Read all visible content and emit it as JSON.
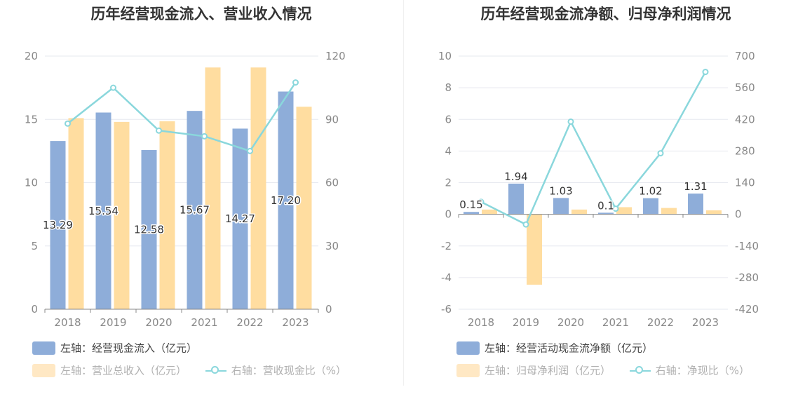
{
  "chart_data": [
    {
      "type": "bar",
      "title": "历年经营现金流入、营业收入情况",
      "categories": [
        "2018",
        "2019",
        "2020",
        "2021",
        "2022",
        "2023"
      ],
      "y_left": {
        "ticks": [
          "0",
          "5",
          "10",
          "15",
          "20"
        ],
        "range": [
          0,
          20
        ]
      },
      "y_right": {
        "ticks": [
          "0",
          "30",
          "60",
          "90",
          "120"
        ],
        "range": [
          0,
          120
        ]
      },
      "series": [
        {
          "name": "左轴：经营现金流入（亿元）",
          "axis": "left",
          "kind": "bar",
          "color": "#8eadd9",
          "values": [
            13.29,
            15.54,
            12.58,
            15.67,
            14.27,
            17.2
          ],
          "labels": [
            "13.29",
            "15.54",
            "12.58",
            "15.67",
            "14.27",
            "17.20"
          ]
        },
        {
          "name": "左轴：营业总收入（亿元）",
          "axis": "left",
          "kind": "bar",
          "color": "#ffdda0",
          "values": [
            15.1,
            14.8,
            14.85,
            19.1,
            19.1,
            16.0
          ]
        },
        {
          "name": "右轴：营收现金比（%）",
          "axis": "right",
          "kind": "line",
          "color": "#8ad7dc",
          "values": [
            88.0,
            105.0,
            84.7,
            82.0,
            75.0,
            107.5
          ]
        }
      ],
      "grid": true
    },
    {
      "type": "bar",
      "title": "历年经营现金流净额、归母净利润情况",
      "categories": [
        "2018",
        "2019",
        "2020",
        "2021",
        "2022",
        "2023"
      ],
      "y_left": {
        "ticks": [
          "-6",
          "-4",
          "-2",
          "0",
          "2",
          "4",
          "6",
          "8",
          "10"
        ],
        "range": [
          -6,
          10
        ]
      },
      "y_right": {
        "ticks": [
          "-420",
          "-280",
          "-140",
          "0",
          "140",
          "280",
          "420",
          "560",
          "700"
        ],
        "range": [
          -420,
          700
        ]
      },
      "series": [
        {
          "name": "左轴：经营活动现金流净额（亿元）",
          "axis": "left",
          "kind": "bar",
          "color": "#8eadd9",
          "values": [
            0.15,
            1.94,
            1.03,
            0.1,
            1.02,
            1.31
          ],
          "labels": [
            "0.15",
            "1.94",
            "1.03",
            "0.1",
            "1.02",
            "1.31"
          ]
        },
        {
          "name": "左轴：归母净利润（亿元）",
          "axis": "left",
          "kind": "bar",
          "color": "#ffdda0",
          "values": [
            0.3,
            -4.45,
            0.3,
            0.45,
            0.4,
            0.25
          ]
        },
        {
          "name": "右轴：净现比（%）",
          "axis": "right",
          "kind": "line",
          "color": "#8ad7dc",
          "values": [
            55,
            -45,
            410,
            25,
            270,
            630
          ]
        }
      ],
      "grid": true
    }
  ]
}
